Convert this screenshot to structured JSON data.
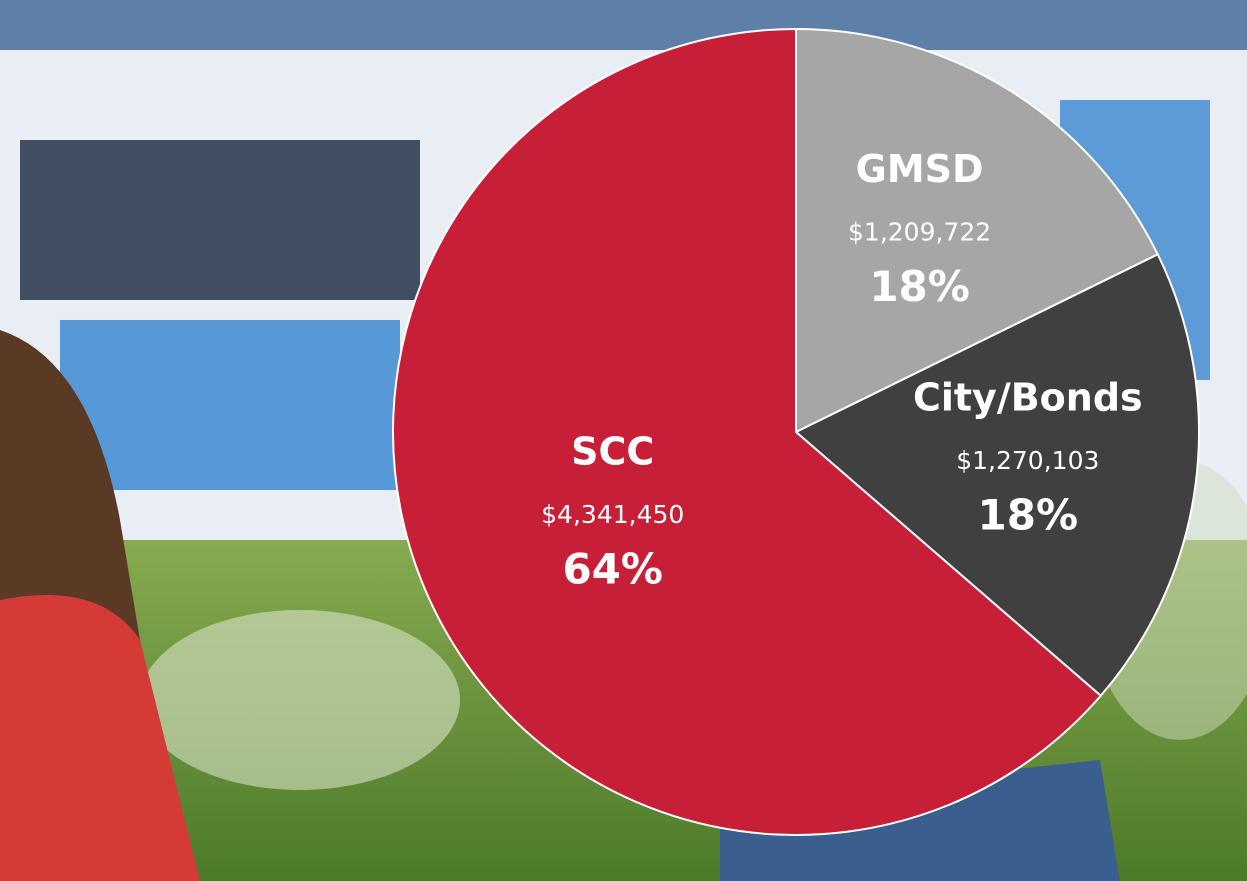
{
  "chart_data": {
    "type": "pie",
    "categories": [
      "GMSD",
      "City/Bonds",
      "SCC"
    ],
    "values": [
      1209722,
      1270103,
      4341450
    ],
    "value_labels": [
      "$1,209,722",
      "$1,270,103",
      "$4,341,450"
    ],
    "percent_labels": [
      "18%",
      "18%",
      "64%"
    ],
    "colors": [
      "#a6a6a6",
      "#404040",
      "#c81f38"
    ]
  }
}
